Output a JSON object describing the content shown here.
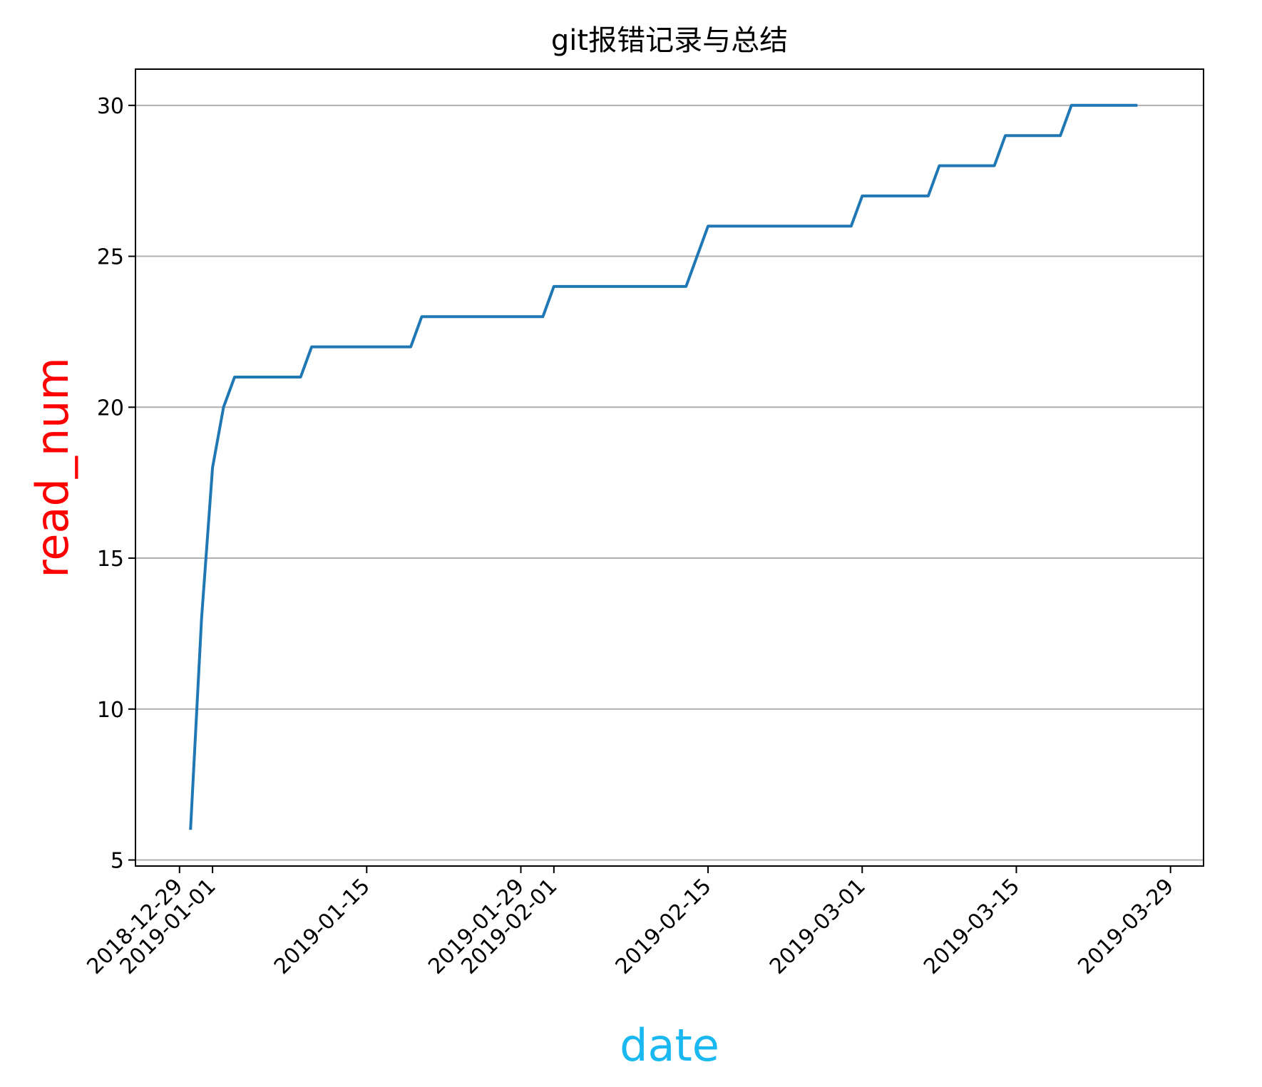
{
  "chart_data": {
    "type": "line",
    "title": "git报错记录与总结",
    "xlabel": "date",
    "ylabel": "read_num",
    "xlabel_color": "#1ab8f0",
    "ylabel_color": "#ff0000",
    "line_color": "#1f77b4",
    "grid": "y",
    "xlim": [
      "2018-12-25",
      "2019-04-01"
    ],
    "ylim": [
      4.8,
      31.2
    ],
    "yticks": [
      5,
      10,
      15,
      20,
      25,
      30
    ],
    "xticks": [
      "2018-12-29",
      "2019-01-01",
      "2019-01-15",
      "2019-01-29",
      "2019-02-01",
      "2019-02-15",
      "2019-03-01",
      "2019-03-15",
      "2019-03-29"
    ],
    "series": [
      {
        "x": [
          "2018-12-30",
          "2018-12-31",
          "2019-01-01",
          "2019-01-02",
          "2019-01-03",
          "2019-01-09",
          "2019-01-10",
          "2019-01-19",
          "2019-01-20",
          "2019-01-31",
          "2019-02-01",
          "2019-02-13",
          "2019-02-15",
          "2019-02-28",
          "2019-03-01",
          "2019-03-07",
          "2019-03-08",
          "2019-03-13",
          "2019-03-14",
          "2019-03-19",
          "2019-03-20",
          "2019-03-26"
        ],
        "y": [
          6,
          13,
          18,
          20,
          21,
          21,
          22,
          22,
          23,
          23,
          24,
          24,
          26,
          26,
          27,
          27,
          28,
          28,
          29,
          29,
          30,
          30
        ]
      }
    ]
  }
}
